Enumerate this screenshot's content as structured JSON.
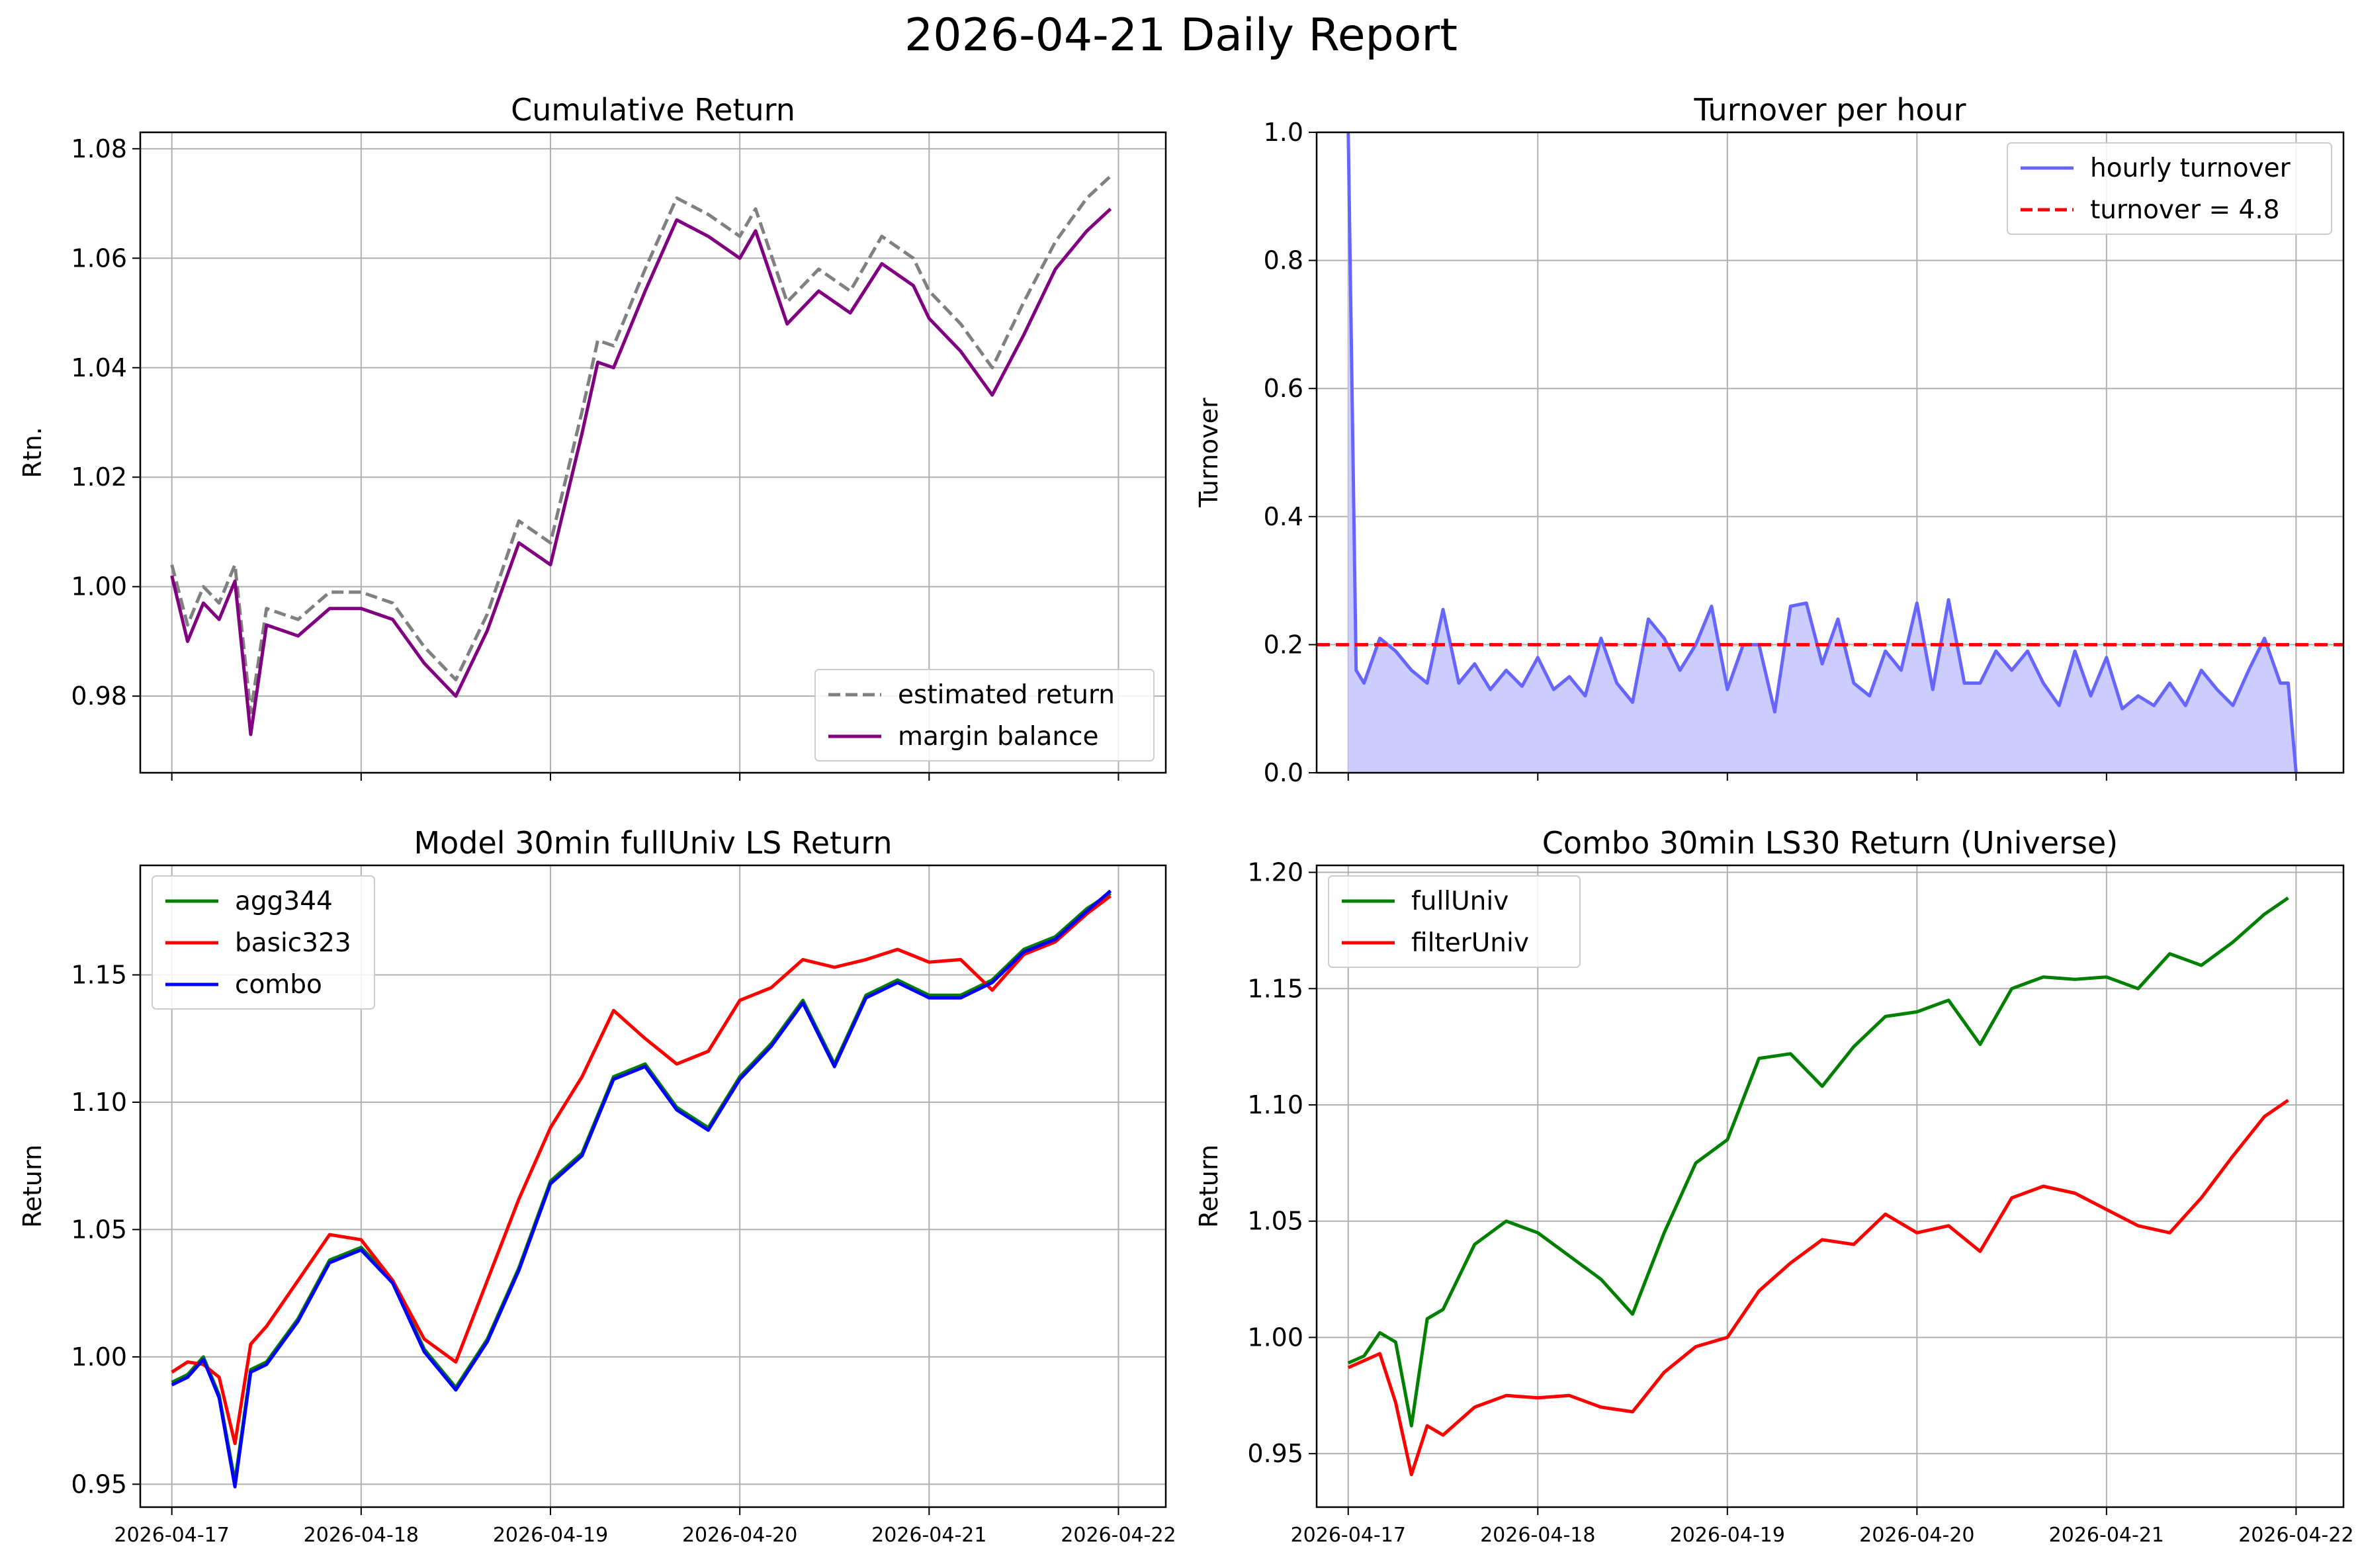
{
  "report_title": "2026-04-21 Daily Report",
  "colors": {
    "estimated": "#808080",
    "margin": "#800080",
    "turnover": "#6666ff",
    "turnover_fill": "#ccccff",
    "threshold": "#ff0000",
    "green": "#008000",
    "red": "#ff0000",
    "blue": "#0000ff"
  },
  "chart_data": [
    {
      "id": "cum",
      "type": "line",
      "title": "Cumulative Return",
      "ylabel": "Rtn.",
      "xlabel": "",
      "x_ticks": [
        "2026-04-17",
        "2026-04-18",
        "2026-04-19",
        "2026-04-20",
        "2026-04-21",
        "2026-04-22"
      ],
      "x_tick_labels_visible": false,
      "y_ticks": [
        "0.98",
        "1.00",
        "1.02",
        "1.04",
        "1.06",
        "1.08"
      ],
      "xlim": [
        "2026-04-16 20:00",
        "2026-04-22 06:00"
      ],
      "ylim": [
        0.966,
        1.083
      ],
      "grid": true,
      "legend": "lower right",
      "x_unit": "date",
      "series": [
        {
          "name": "estimated return",
          "color": "#808080",
          "style": "dashed",
          "x": [
            "2026-04-17 00:00",
            "2026-04-17 02:00",
            "2026-04-17 04:00",
            "2026-04-17 06:00",
            "2026-04-17 08:00",
            "2026-04-17 10:00",
            "2026-04-17 12:00",
            "2026-04-17 16:00",
            "2026-04-17 20:00",
            "2026-04-18 00:00",
            "2026-04-18 04:00",
            "2026-04-18 08:00",
            "2026-04-18 12:00",
            "2026-04-18 16:00",
            "2026-04-18 20:00",
            "2026-04-19 00:00",
            "2026-04-19 04:00",
            "2026-04-19 06:00",
            "2026-04-19 08:00",
            "2026-04-19 12:00",
            "2026-04-19 16:00",
            "2026-04-19 20:00",
            "2026-04-20 00:00",
            "2026-04-20 02:00",
            "2026-04-20 06:00",
            "2026-04-20 10:00",
            "2026-04-20 14:00",
            "2026-04-20 18:00",
            "2026-04-20 22:00",
            "2026-04-21 00:00",
            "2026-04-21 04:00",
            "2026-04-21 08:00",
            "2026-04-21 12:00",
            "2026-04-21 16:00",
            "2026-04-21 20:00",
            "2026-04-21 23:00"
          ],
          "y": [
            1.004,
            0.993,
            1.0,
            0.997,
            1.004,
            0.977,
            0.996,
            0.994,
            0.999,
            0.999,
            0.997,
            0.989,
            0.983,
            0.995,
            1.012,
            1.008,
            1.032,
            1.045,
            1.044,
            1.058,
            1.071,
            1.068,
            1.064,
            1.069,
            1.052,
            1.058,
            1.054,
            1.064,
            1.06,
            1.054,
            1.048,
            1.04,
            1.052,
            1.063,
            1.071,
            1.075
          ]
        },
        {
          "name": "margin balance",
          "color": "#800080",
          "style": "solid",
          "x": [
            "2026-04-17 00:00",
            "2026-04-17 02:00",
            "2026-04-17 04:00",
            "2026-04-17 06:00",
            "2026-04-17 08:00",
            "2026-04-17 10:00",
            "2026-04-17 12:00",
            "2026-04-17 16:00",
            "2026-04-17 20:00",
            "2026-04-18 00:00",
            "2026-04-18 04:00",
            "2026-04-18 08:00",
            "2026-04-18 12:00",
            "2026-04-18 16:00",
            "2026-04-18 20:00",
            "2026-04-19 00:00",
            "2026-04-19 04:00",
            "2026-04-19 06:00",
            "2026-04-19 08:00",
            "2026-04-19 12:00",
            "2026-04-19 16:00",
            "2026-04-19 20:00",
            "2026-04-20 00:00",
            "2026-04-20 02:00",
            "2026-04-20 06:00",
            "2026-04-20 10:00",
            "2026-04-20 14:00",
            "2026-04-20 18:00",
            "2026-04-20 22:00",
            "2026-04-21 00:00",
            "2026-04-21 04:00",
            "2026-04-21 08:00",
            "2026-04-21 12:00",
            "2026-04-21 16:00",
            "2026-04-21 20:00",
            "2026-04-21 23:00"
          ],
          "y": [
            1.002,
            0.99,
            0.997,
            0.994,
            1.001,
            0.973,
            0.993,
            0.991,
            0.996,
            0.996,
            0.994,
            0.986,
            0.98,
            0.992,
            1.008,
            1.004,
            1.028,
            1.041,
            1.04,
            1.054,
            1.067,
            1.064,
            1.06,
            1.065,
            1.048,
            1.054,
            1.05,
            1.059,
            1.055,
            1.049,
            1.043,
            1.035,
            1.046,
            1.058,
            1.065,
            1.069
          ]
        }
      ]
    },
    {
      "id": "turn",
      "type": "area",
      "title": "Turnover per hour",
      "ylabel": "Turnover",
      "xlabel": "",
      "x_ticks": [
        "2026-04-17",
        "2026-04-18",
        "2026-04-19",
        "2026-04-20",
        "2026-04-21",
        "2026-04-22"
      ],
      "x_tick_labels_visible": false,
      "y_ticks": [
        "0.0",
        "0.2",
        "0.4",
        "0.6",
        "0.8",
        "1.0"
      ],
      "xlim": [
        "2026-04-16 20:00",
        "2026-04-22 06:00"
      ],
      "ylim": [
        0,
        1.0
      ],
      "grid": true,
      "legend": "upper right",
      "x_unit": "date",
      "threshold": {
        "label": "turnover = 4.8",
        "value": 0.2,
        "color": "#ff0000",
        "style": "dashed"
      },
      "series": [
        {
          "name": "hourly turnover",
          "color": "#6666ff",
          "fill": "#ccccff",
          "x": [
            "2026-04-17 00:00",
            "2026-04-17 01:00",
            "2026-04-17 02:00",
            "2026-04-17 04:00",
            "2026-04-17 06:00",
            "2026-04-17 08:00",
            "2026-04-17 10:00",
            "2026-04-17 12:00",
            "2026-04-17 14:00",
            "2026-04-17 16:00",
            "2026-04-17 18:00",
            "2026-04-17 20:00",
            "2026-04-17 22:00",
            "2026-04-18 00:00",
            "2026-04-18 02:00",
            "2026-04-18 04:00",
            "2026-04-18 06:00",
            "2026-04-18 08:00",
            "2026-04-18 10:00",
            "2026-04-18 12:00",
            "2026-04-18 14:00",
            "2026-04-18 16:00",
            "2026-04-18 18:00",
            "2026-04-18 20:00",
            "2026-04-18 22:00",
            "2026-04-19 00:00",
            "2026-04-19 02:00",
            "2026-04-19 04:00",
            "2026-04-19 06:00",
            "2026-04-19 08:00",
            "2026-04-19 10:00",
            "2026-04-19 12:00",
            "2026-04-19 14:00",
            "2026-04-19 16:00",
            "2026-04-19 18:00",
            "2026-04-19 20:00",
            "2026-04-19 22:00",
            "2026-04-20 00:00",
            "2026-04-20 02:00",
            "2026-04-20 04:00",
            "2026-04-20 06:00",
            "2026-04-20 08:00",
            "2026-04-20 10:00",
            "2026-04-20 12:00",
            "2026-04-20 14:00",
            "2026-04-20 16:00",
            "2026-04-20 18:00",
            "2026-04-20 20:00",
            "2026-04-20 22:00",
            "2026-04-21 00:00",
            "2026-04-21 02:00",
            "2026-04-21 04:00",
            "2026-04-21 06:00",
            "2026-04-21 08:00",
            "2026-04-21 10:00",
            "2026-04-21 12:00",
            "2026-04-21 14:00",
            "2026-04-21 16:00",
            "2026-04-21 18:00",
            "2026-04-21 20:00",
            "2026-04-21 22:00",
            "2026-04-21 23:00",
            "2026-04-22 00:00"
          ],
          "y": [
            1.0,
            0.16,
            0.14,
            0.21,
            0.19,
            0.16,
            0.14,
            0.255,
            0.14,
            0.17,
            0.13,
            0.16,
            0.135,
            0.18,
            0.13,
            0.15,
            0.12,
            0.21,
            0.14,
            0.11,
            0.24,
            0.21,
            0.16,
            0.2,
            0.26,
            0.13,
            0.2,
            0.2,
            0.095,
            0.26,
            0.265,
            0.17,
            0.24,
            0.14,
            0.12,
            0.19,
            0.16,
            0.265,
            0.13,
            0.27,
            0.14,
            0.14,
            0.19,
            0.16,
            0.19,
            0.14,
            0.105,
            0.19,
            0.12,
            0.18,
            0.1,
            0.12,
            0.105,
            0.14,
            0.105,
            0.16,
            0.13,
            0.105,
            0.16,
            0.21,
            0.14,
            0.14,
            0.0
          ]
        }
      ]
    },
    {
      "id": "model",
      "type": "line",
      "title": "Model 30min fullUniv LS Return",
      "ylabel": "Return",
      "xlabel": "",
      "x_ticks": [
        "2026-04-17",
        "2026-04-18",
        "2026-04-19",
        "2026-04-20",
        "2026-04-21",
        "2026-04-22"
      ],
      "y_ticks": [
        "0.95",
        "1.00",
        "1.05",
        "1.10",
        "1.15"
      ],
      "xlim": [
        "2026-04-16 20:00",
        "2026-04-22 06:00"
      ],
      "ylim": [
        0.941,
        1.193
      ],
      "grid": true,
      "legend": "upper left",
      "x_unit": "date",
      "series": [
        {
          "name": "agg344",
          "color": "#008000",
          "x": [
            "2026-04-17 00:00",
            "2026-04-17 02:00",
            "2026-04-17 04:00",
            "2026-04-17 06:00",
            "2026-04-17 08:00",
            "2026-04-17 10:00",
            "2026-04-17 12:00",
            "2026-04-17 16:00",
            "2026-04-17 20:00",
            "2026-04-18 00:00",
            "2026-04-18 04:00",
            "2026-04-18 08:00",
            "2026-04-18 12:00",
            "2026-04-18 16:00",
            "2026-04-18 20:00",
            "2026-04-19 00:00",
            "2026-04-19 04:00",
            "2026-04-19 08:00",
            "2026-04-19 12:00",
            "2026-04-19 16:00",
            "2026-04-19 20:00",
            "2026-04-20 00:00",
            "2026-04-20 04:00",
            "2026-04-20 08:00",
            "2026-04-20 12:00",
            "2026-04-20 16:00",
            "2026-04-20 20:00",
            "2026-04-21 00:00",
            "2026-04-21 04:00",
            "2026-04-21 08:00",
            "2026-04-21 12:00",
            "2026-04-21 16:00",
            "2026-04-21 20:00",
            "2026-04-21 23:00"
          ],
          "y": [
            0.99,
            0.993,
            1.0,
            0.985,
            0.951,
            0.995,
            0.998,
            1.015,
            1.038,
            1.043,
            1.03,
            1.003,
            0.988,
            1.007,
            1.035,
            1.069,
            1.08,
            1.11,
            1.115,
            1.098,
            1.09,
            1.11,
            1.123,
            1.14,
            1.115,
            1.142,
            1.148,
            1.142,
            1.142,
            1.148,
            1.16,
            1.165,
            1.176,
            1.182
          ]
        },
        {
          "name": "basic323",
          "color": "#ff0000",
          "x": [
            "2026-04-17 00:00",
            "2026-04-17 02:00",
            "2026-04-17 04:00",
            "2026-04-17 06:00",
            "2026-04-17 08:00",
            "2026-04-17 10:00",
            "2026-04-17 12:00",
            "2026-04-17 16:00",
            "2026-04-17 20:00",
            "2026-04-18 00:00",
            "2026-04-18 04:00",
            "2026-04-18 08:00",
            "2026-04-18 12:00",
            "2026-04-18 16:00",
            "2026-04-18 20:00",
            "2026-04-19 00:00",
            "2026-04-19 04:00",
            "2026-04-19 08:00",
            "2026-04-19 12:00",
            "2026-04-19 16:00",
            "2026-04-19 20:00",
            "2026-04-20 00:00",
            "2026-04-20 04:00",
            "2026-04-20 08:00",
            "2026-04-20 12:00",
            "2026-04-20 16:00",
            "2026-04-20 20:00",
            "2026-04-21 00:00",
            "2026-04-21 04:00",
            "2026-04-21 08:00",
            "2026-04-21 12:00",
            "2026-04-21 16:00",
            "2026-04-21 20:00",
            "2026-04-21 23:00"
          ],
          "y": [
            0.994,
            0.998,
            0.997,
            0.992,
            0.966,
            1.005,
            1.012,
            1.03,
            1.048,
            1.046,
            1.03,
            1.007,
            0.998,
            1.03,
            1.062,
            1.09,
            1.11,
            1.136,
            1.125,
            1.115,
            1.12,
            1.14,
            1.145,
            1.156,
            1.153,
            1.156,
            1.16,
            1.155,
            1.156,
            1.144,
            1.158,
            1.163,
            1.174,
            1.181
          ]
        },
        {
          "name": "combo",
          "color": "#0000ff",
          "x": [
            "2026-04-17 00:00",
            "2026-04-17 02:00",
            "2026-04-17 04:00",
            "2026-04-17 06:00",
            "2026-04-17 08:00",
            "2026-04-17 10:00",
            "2026-04-17 12:00",
            "2026-04-17 16:00",
            "2026-04-17 20:00",
            "2026-04-18 00:00",
            "2026-04-18 04:00",
            "2026-04-18 08:00",
            "2026-04-18 12:00",
            "2026-04-18 16:00",
            "2026-04-18 20:00",
            "2026-04-19 00:00",
            "2026-04-19 04:00",
            "2026-04-19 08:00",
            "2026-04-19 12:00",
            "2026-04-19 16:00",
            "2026-04-19 20:00",
            "2026-04-20 00:00",
            "2026-04-20 04:00",
            "2026-04-20 08:00",
            "2026-04-20 12:00",
            "2026-04-20 16:00",
            "2026-04-20 20:00",
            "2026-04-21 00:00",
            "2026-04-21 04:00",
            "2026-04-21 08:00",
            "2026-04-21 12:00",
            "2026-04-21 16:00",
            "2026-04-21 20:00",
            "2026-04-21 23:00"
          ],
          "y": [
            0.989,
            0.992,
            0.999,
            0.984,
            0.949,
            0.994,
            0.997,
            1.014,
            1.037,
            1.042,
            1.029,
            1.002,
            0.987,
            1.006,
            1.034,
            1.068,
            1.079,
            1.109,
            1.114,
            1.097,
            1.089,
            1.109,
            1.122,
            1.139,
            1.114,
            1.141,
            1.147,
            1.141,
            1.141,
            1.147,
            1.159,
            1.164,
            1.175,
            1.183
          ]
        }
      ]
    },
    {
      "id": "combo",
      "type": "line",
      "title": "Combo 30min LS30 Return (Universe)",
      "ylabel": "Return",
      "xlabel": "",
      "x_ticks": [
        "2026-04-17",
        "2026-04-18",
        "2026-04-19",
        "2026-04-20",
        "2026-04-21",
        "2026-04-22"
      ],
      "y_ticks": [
        "0.95",
        "1.00",
        "1.05",
        "1.10",
        "1.15",
        "1.20"
      ],
      "xlim": [
        "2026-04-16 20:00",
        "2026-04-22 06:00"
      ],
      "ylim": [
        0.927,
        1.203
      ],
      "grid": true,
      "legend": "upper left",
      "x_unit": "date",
      "series": [
        {
          "name": "fullUniv",
          "color": "#008000",
          "x": [
            "2026-04-17 00:00",
            "2026-04-17 02:00",
            "2026-04-17 04:00",
            "2026-04-17 06:00",
            "2026-04-17 08:00",
            "2026-04-17 10:00",
            "2026-04-17 12:00",
            "2026-04-17 16:00",
            "2026-04-17 20:00",
            "2026-04-18 00:00",
            "2026-04-18 04:00",
            "2026-04-18 08:00",
            "2026-04-18 12:00",
            "2026-04-18 16:00",
            "2026-04-18 20:00",
            "2026-04-19 00:00",
            "2026-04-19 04:00",
            "2026-04-19 08:00",
            "2026-04-19 12:00",
            "2026-04-19 16:00",
            "2026-04-19 20:00",
            "2026-04-20 00:00",
            "2026-04-20 04:00",
            "2026-04-20 08:00",
            "2026-04-20 12:00",
            "2026-04-20 16:00",
            "2026-04-20 20:00",
            "2026-04-21 00:00",
            "2026-04-21 04:00",
            "2026-04-21 08:00",
            "2026-04-21 12:00",
            "2026-04-21 16:00",
            "2026-04-21 20:00",
            "2026-04-21 23:00"
          ],
          "y": [
            0.989,
            0.992,
            1.002,
            0.998,
            0.962,
            1.008,
            1.012,
            1.04,
            1.05,
            1.045,
            1.035,
            1.025,
            1.01,
            1.045,
            1.075,
            1.085,
            1.12,
            1.122,
            1.108,
            1.125,
            1.138,
            1.14,
            1.145,
            1.126,
            1.15,
            1.155,
            1.154,
            1.155,
            1.15,
            1.165,
            1.16,
            1.17,
            1.182,
            1.189
          ]
        },
        {
          "name": "filterUniv",
          "color": "#ff0000",
          "x": [
            "2026-04-17 00:00",
            "2026-04-17 02:00",
            "2026-04-17 04:00",
            "2026-04-17 06:00",
            "2026-04-17 08:00",
            "2026-04-17 10:00",
            "2026-04-17 12:00",
            "2026-04-17 16:00",
            "2026-04-17 20:00",
            "2026-04-18 00:00",
            "2026-04-18 04:00",
            "2026-04-18 08:00",
            "2026-04-18 12:00",
            "2026-04-18 16:00",
            "2026-04-18 20:00",
            "2026-04-19 00:00",
            "2026-04-19 04:00",
            "2026-04-19 08:00",
            "2026-04-19 12:00",
            "2026-04-19 16:00",
            "2026-04-19 20:00",
            "2026-04-20 00:00",
            "2026-04-20 04:00",
            "2026-04-20 08:00",
            "2026-04-20 12:00",
            "2026-04-20 16:00",
            "2026-04-20 20:00",
            "2026-04-21 00:00",
            "2026-04-21 04:00",
            "2026-04-21 08:00",
            "2026-04-21 12:00",
            "2026-04-21 16:00",
            "2026-04-21 20:00",
            "2026-04-21 23:00"
          ],
          "y": [
            0.987,
            0.99,
            0.993,
            0.972,
            0.941,
            0.962,
            0.958,
            0.97,
            0.975,
            0.974,
            0.975,
            0.97,
            0.968,
            0.985,
            0.996,
            1.0,
            1.02,
            1.032,
            1.042,
            1.04,
            1.053,
            1.045,
            1.048,
            1.037,
            1.06,
            1.065,
            1.062,
            1.055,
            1.048,
            1.045,
            1.06,
            1.078,
            1.095,
            1.102
          ]
        }
      ]
    }
  ]
}
